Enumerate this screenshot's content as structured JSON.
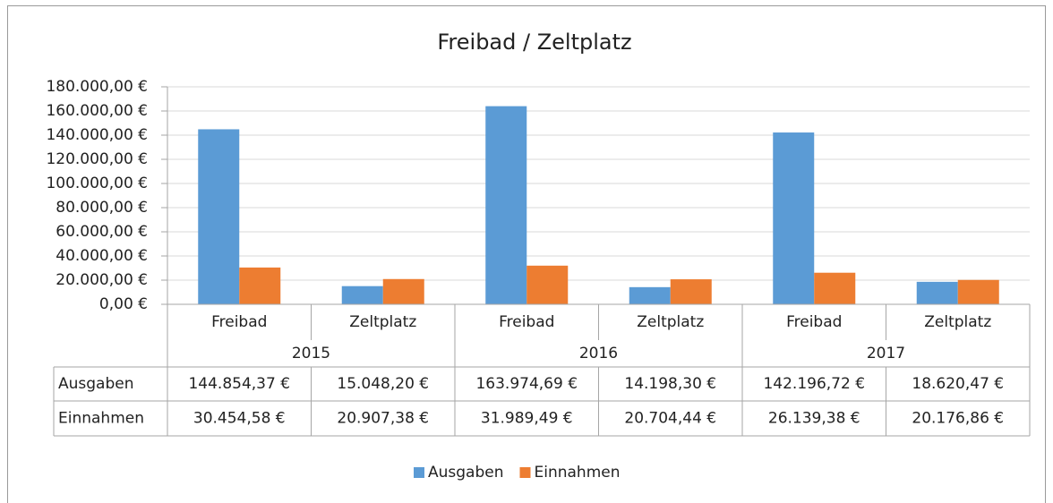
{
  "chart_data": {
    "type": "bar",
    "title": "Freibad / Zeltplatz",
    "categories": [
      "Freibad",
      "Zeltplatz",
      "Freibad",
      "Zeltplatz",
      "Freibad",
      "Zeltplatz"
    ],
    "groups": [
      "2015",
      "2016",
      "2017"
    ],
    "series": [
      {
        "name": "Ausgaben",
        "color": "#5b9bd5",
        "values": [
          144854.37,
          15048.2,
          163974.69,
          14198.3,
          142196.72,
          18620.47
        ],
        "value_labels": [
          "144.854,37 €",
          "15.048,20 €",
          "163.974,69 €",
          "14.198,30 €",
          "142.196,72 €",
          "18.620,47 €"
        ]
      },
      {
        "name": "Einnahmen",
        "color": "#ed7d31",
        "values": [
          30454.58,
          20907.38,
          31989.49,
          20704.44,
          26139.38,
          20176.86
        ],
        "value_labels": [
          "30.454,58 €",
          "20.907,38 €",
          "31.989,49 €",
          "20.704,44 €",
          "26.139,38 €",
          "20.176,86 €"
        ]
      }
    ],
    "ylim": [
      0,
      180000
    ],
    "yticks": [
      {
        "value": 0,
        "label": "0,00 €"
      },
      {
        "value": 20000,
        "label": "20.000,00 €"
      },
      {
        "value": 40000,
        "label": "40.000,00 €"
      },
      {
        "value": 60000,
        "label": "60.000,00 €"
      },
      {
        "value": 80000,
        "label": "80.000,00 €"
      },
      {
        "value": 100000,
        "label": "100.000,00 €"
      },
      {
        "value": 120000,
        "label": "120.000,00 €"
      },
      {
        "value": 140000,
        "label": "140.000,00 €"
      },
      {
        "value": 160000,
        "label": "160.000,00 €"
      },
      {
        "value": 180000,
        "label": "180.000,00 €"
      }
    ],
    "grid": true,
    "legend": "bottom"
  }
}
